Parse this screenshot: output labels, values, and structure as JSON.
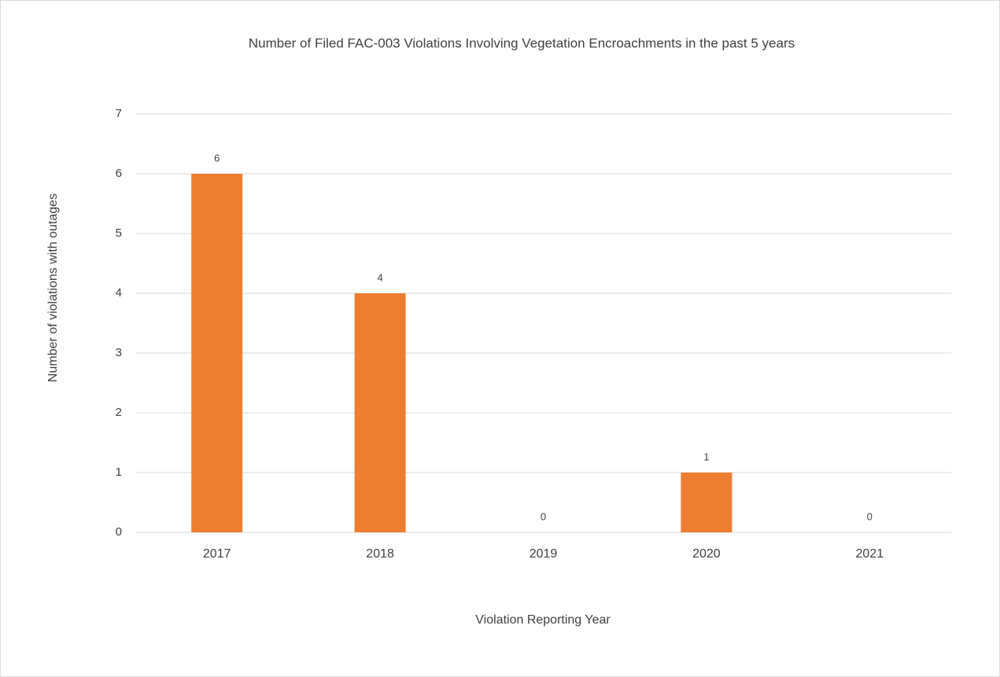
{
  "chart_data": {
    "type": "bar",
    "title": "Number of Filed FAC-003 Violations Involving Vegetation Encroachments in the past 5 years",
    "x_label": "Violation Reporting Year",
    "y_label": "Number of violations with outages",
    "categories": [
      "2017",
      "2018",
      "2019",
      "2020",
      "2021"
    ],
    "values": [
      6,
      4,
      0,
      1,
      0
    ],
    "color": "#ed7d31",
    "ylim": [
      0,
      7
    ],
    "yticks": [
      0,
      1,
      2,
      3,
      4,
      5,
      6,
      7
    ],
    "grid": true
  }
}
